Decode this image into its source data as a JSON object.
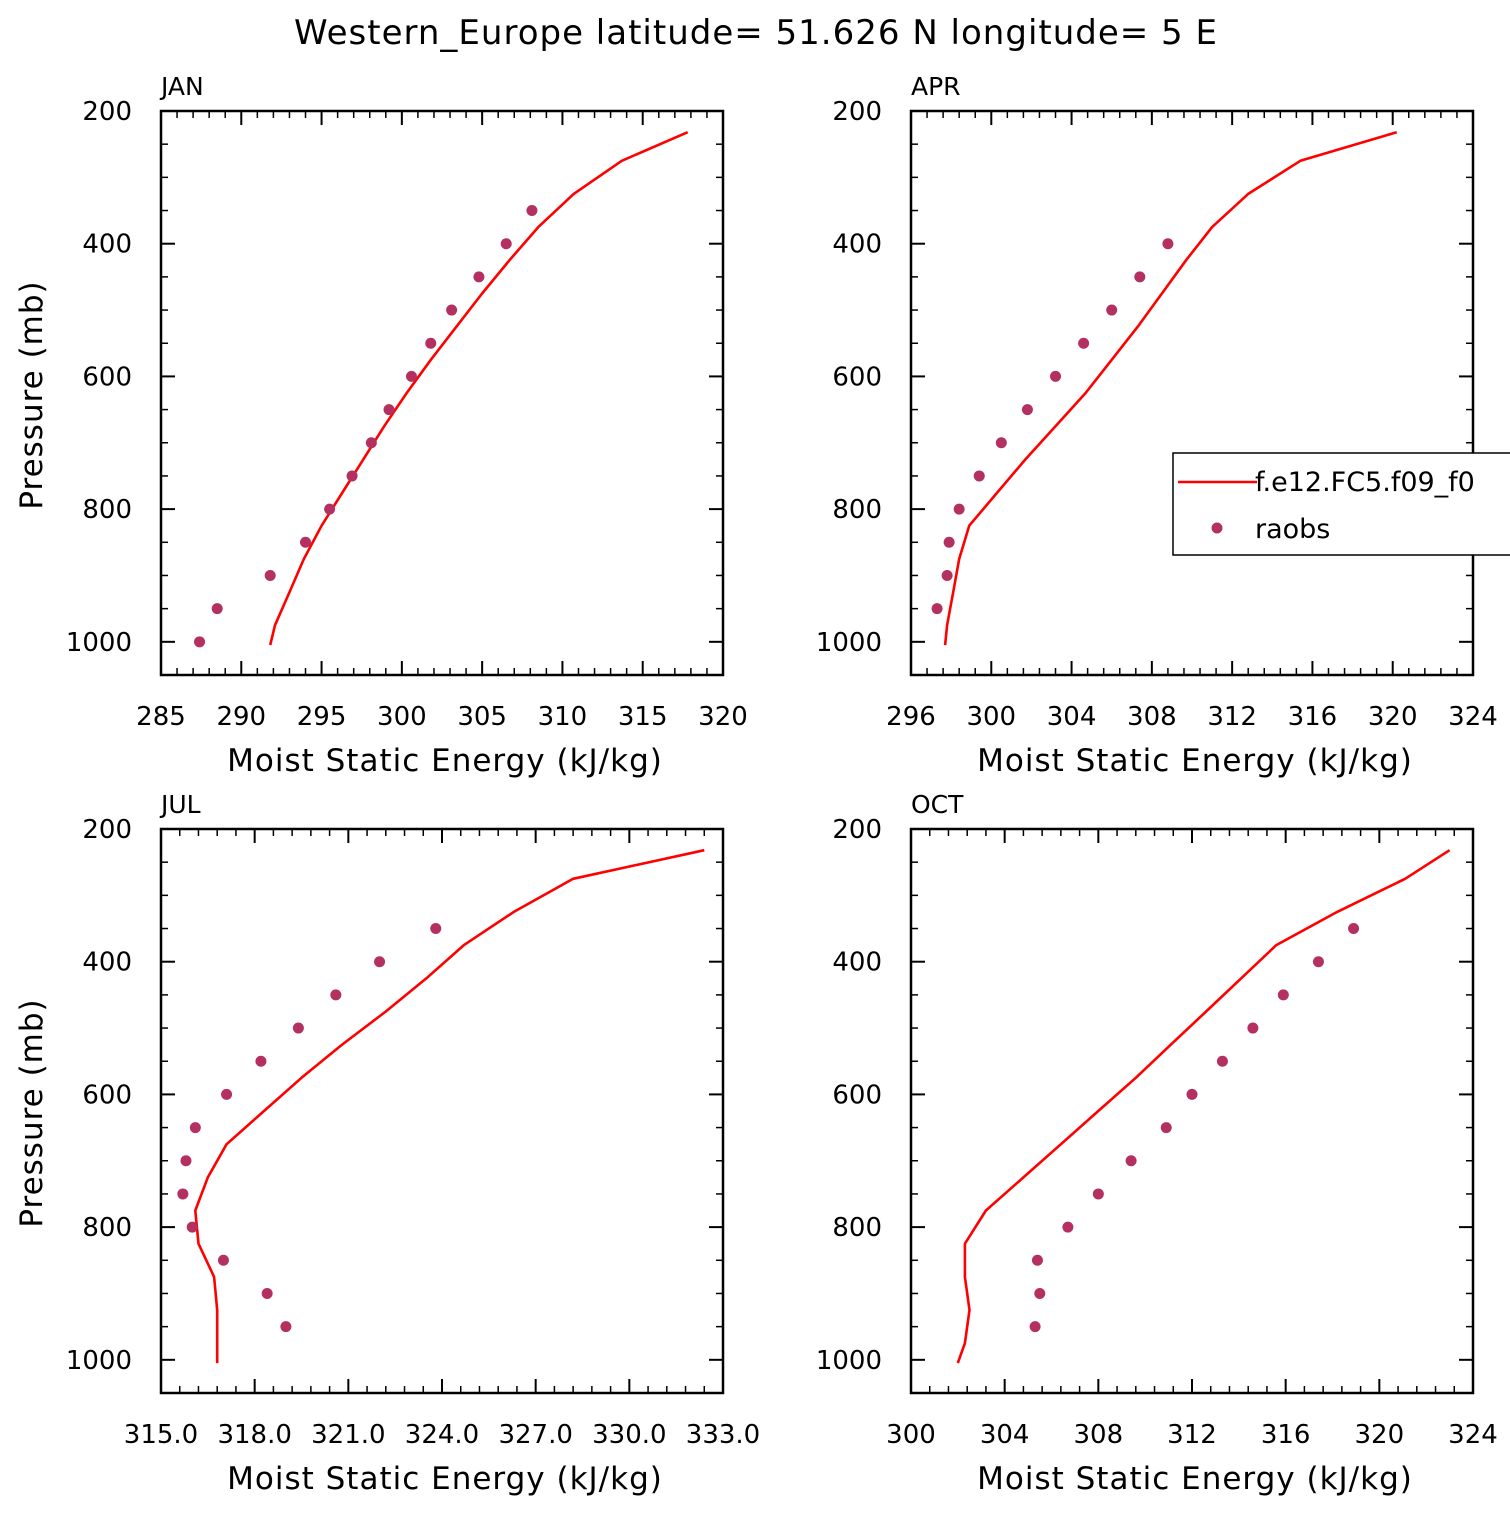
{
  "chart_data": {
    "type": "line",
    "title": "Western_Europe  latitude= 51.626 N longitude= 5 E",
    "xlabel": "Moist Static Energy (kJ/kg)",
    "ylabel": "Pressure (mb)",
    "ylim": [
      1050,
      200
    ],
    "yticks": [
      200,
      400,
      600,
      800,
      1000
    ],
    "yticklabels": [
      "200",
      "400",
      "600",
      "800",
      "1000"
    ],
    "legend": {
      "placement": "in APR panel, right edge",
      "colors": {
        "model": "#ff0000",
        "obs": "#b33060"
      },
      "entries": [
        "f.e12.FC5.f09_f0",
        "raobs"
      ]
    },
    "panels": [
      {
        "label": "JAN",
        "xlim": [
          285,
          320
        ],
        "xticks": [
          285,
          290,
          295,
          300,
          305,
          310,
          315,
          320
        ],
        "xticklabels": [
          "285",
          "290",
          "295",
          "300",
          "305",
          "310",
          "315",
          "320"
        ],
        "model": {
          "name": "f.e12.FC5.f09_f0",
          "p": [
            1005,
            975,
            925,
            875,
            825,
            775,
            725,
            675,
            625,
            575,
            525,
            475,
            425,
            375,
            325,
            275,
            232
          ],
          "x": [
            291.8,
            292.1,
            293.0,
            293.9,
            295.0,
            296.3,
            297.6,
            298.9,
            300.3,
            301.8,
            303.4,
            305.0,
            306.7,
            308.5,
            310.7,
            313.7,
            317.8
          ]
        },
        "obs": {
          "name": "raobs",
          "p": [
            1000,
            950,
            900,
            850,
            800,
            750,
            700,
            650,
            600,
            550,
            500,
            450,
            400,
            350
          ],
          "x": [
            287.4,
            288.5,
            291.8,
            294.0,
            295.5,
            296.9,
            298.1,
            299.2,
            300.6,
            301.8,
            303.1,
            304.8,
            306.5,
            308.1
          ]
        }
      },
      {
        "label": "APR",
        "xlim": [
          296,
          324
        ],
        "xticks": [
          296,
          300,
          304,
          308,
          312,
          316,
          320,
          324
        ],
        "xticklabels": [
          "296",
          "300",
          "304",
          "308",
          "312",
          "316",
          "320",
          "324"
        ],
        "model": {
          "name": "f.e12.FC5.f09_f0",
          "p": [
            1005,
            975,
            925,
            875,
            825,
            775,
            725,
            675,
            625,
            575,
            525,
            475,
            425,
            375,
            325,
            275,
            232
          ],
          "x": [
            297.7,
            297.8,
            298.1,
            298.4,
            298.9,
            300.3,
            301.7,
            303.2,
            304.7,
            306.0,
            307.3,
            308.5,
            309.7,
            311.0,
            312.8,
            315.4,
            320.2
          ]
        },
        "obs": {
          "name": "raobs",
          "p": [
            950,
            900,
            850,
            800,
            750,
            700,
            650,
            600,
            550,
            500,
            450,
            400
          ],
          "x": [
            297.3,
            297.8,
            297.9,
            298.4,
            299.4,
            300.5,
            301.8,
            303.2,
            304.6,
            306.0,
            307.4,
            308.8
          ]
        }
      },
      {
        "label": "JUL",
        "xlim": [
          315.0,
          333.0
        ],
        "xticks": [
          315,
          318,
          321,
          324,
          327,
          330,
          333
        ],
        "xticklabels": [
          "315.0",
          "318.0",
          "321.0",
          "324.0",
          "327.0",
          "330.0",
          "333.0"
        ],
        "model": {
          "name": "f.e12.FC5.f09_f0",
          "p": [
            1005,
            975,
            925,
            875,
            825,
            775,
            725,
            675,
            625,
            575,
            525,
            475,
            425,
            375,
            325,
            275,
            232
          ],
          "x": [
            316.8,
            316.8,
            316.8,
            316.7,
            316.2,
            316.1,
            316.5,
            317.1,
            318.3,
            319.5,
            320.8,
            322.2,
            323.5,
            324.7,
            326.3,
            328.2,
            332.4
          ]
        },
        "obs": {
          "name": "raobs",
          "p": [
            950,
            900,
            850,
            800,
            750,
            700,
            650,
            600,
            550,
            500,
            450,
            400,
            350
          ],
          "x": [
            319.0,
            318.4,
            317.0,
            316.0,
            315.7,
            315.8,
            316.1,
            317.1,
            318.2,
            319.4,
            320.6,
            322.0,
            323.8
          ]
        }
      },
      {
        "label": "OCT",
        "xlim": [
          300,
          324
        ],
        "xticks": [
          300,
          304,
          308,
          312,
          316,
          320,
          324
        ],
        "xticklabels": [
          "300",
          "304",
          "308",
          "312",
          "316",
          "320",
          "324"
        ],
        "model": {
          "name": "f.e12.FC5.f09_f0",
          "p": [
            1005,
            975,
            925,
            875,
            825,
            775,
            725,
            675,
            625,
            575,
            525,
            475,
            425,
            375,
            325,
            275,
            232
          ],
          "x": [
            302.0,
            302.3,
            302.5,
            302.3,
            302.3,
            303.2,
            304.8,
            306.4,
            308.0,
            309.6,
            311.1,
            312.6,
            314.1,
            315.6,
            318.2,
            321.1,
            323.0
          ]
        },
        "obs": {
          "name": "raobs",
          "p": [
            950,
            900,
            850,
            800,
            750,
            700,
            650,
            600,
            550,
            500,
            450,
            400,
            350
          ],
          "x": [
            305.3,
            305.5,
            305.4,
            306.7,
            308.0,
            309.4,
            310.9,
            312.0,
            313.3,
            314.6,
            315.9,
            317.4,
            318.9
          ]
        }
      }
    ]
  }
}
